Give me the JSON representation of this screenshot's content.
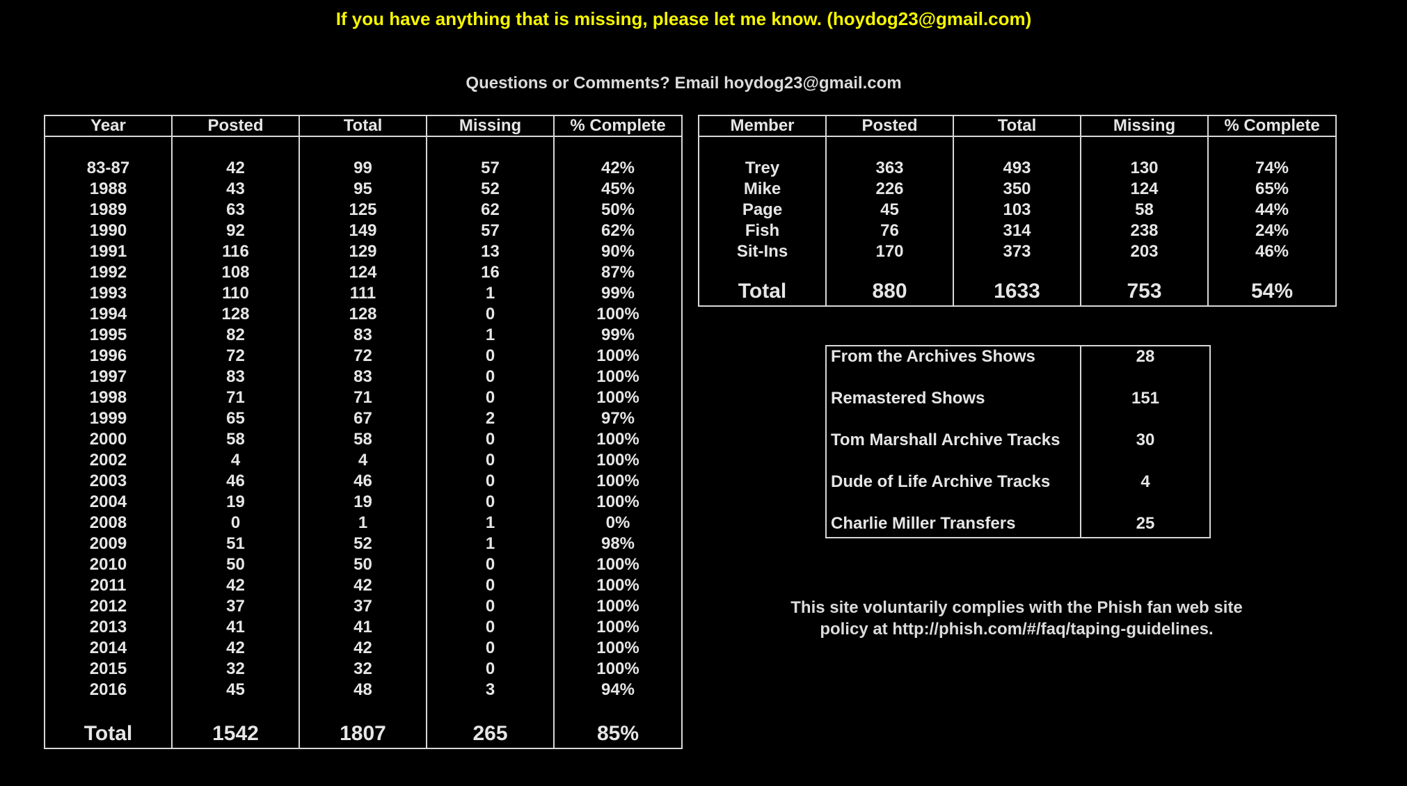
{
  "notice": "If you have anything that is missing, please let me know. (hoydog23@gmail.com)",
  "questions": "Questions or Comments? Email hoydog23@gmail.com",
  "years_table": {
    "headers": [
      "Year",
      "Posted",
      "Total",
      "Missing",
      "% Complete"
    ],
    "rows": [
      [
        "83-87",
        "42",
        "99",
        "57",
        "42%"
      ],
      [
        "1988",
        "43",
        "95",
        "52",
        "45%"
      ],
      [
        "1989",
        "63",
        "125",
        "62",
        "50%"
      ],
      [
        "1990",
        "92",
        "149",
        "57",
        "62%"
      ],
      [
        "1991",
        "116",
        "129",
        "13",
        "90%"
      ],
      [
        "1992",
        "108",
        "124",
        "16",
        "87%"
      ],
      [
        "1993",
        "110",
        "111",
        "1",
        "99%"
      ],
      [
        "1994",
        "128",
        "128",
        "0",
        "100%"
      ],
      [
        "1995",
        "82",
        "83",
        "1",
        "99%"
      ],
      [
        "1996",
        "72",
        "72",
        "0",
        "100%"
      ],
      [
        "1997",
        "83",
        "83",
        "0",
        "100%"
      ],
      [
        "1998",
        "71",
        "71",
        "0",
        "100%"
      ],
      [
        "1999",
        "65",
        "67",
        "2",
        "97%"
      ],
      [
        "2000",
        "58",
        "58",
        "0",
        "100%"
      ],
      [
        "2002",
        "4",
        "4",
        "0",
        "100%"
      ],
      [
        "2003",
        "46",
        "46",
        "0",
        "100%"
      ],
      [
        "2004",
        "19",
        "19",
        "0",
        "100%"
      ],
      [
        "2008",
        "0",
        "1",
        "1",
        "0%"
      ],
      [
        "2009",
        "51",
        "52",
        "1",
        "98%"
      ],
      [
        "2010",
        "50",
        "50",
        "0",
        "100%"
      ],
      [
        "2011",
        "42",
        "42",
        "0",
        "100%"
      ],
      [
        "2012",
        "37",
        "37",
        "0",
        "100%"
      ],
      [
        "2013",
        "41",
        "41",
        "0",
        "100%"
      ],
      [
        "2014",
        "42",
        "42",
        "0",
        "100%"
      ],
      [
        "2015",
        "32",
        "32",
        "0",
        "100%"
      ],
      [
        "2016",
        "45",
        "48",
        "3",
        "94%"
      ]
    ],
    "total": [
      "Total",
      "1542",
      "1807",
      "265",
      "85%"
    ]
  },
  "members_table": {
    "headers": [
      "Member",
      "Posted",
      "Total",
      "Missing",
      "% Complete"
    ],
    "rows": [
      [
        "Trey",
        "363",
        "493",
        "130",
        "74%"
      ],
      [
        "Mike",
        "226",
        "350",
        "124",
        "65%"
      ],
      [
        "Page",
        "45",
        "103",
        "58",
        "44%"
      ],
      [
        "Fish",
        "76",
        "314",
        "238",
        "24%"
      ],
      [
        "Sit-Ins",
        "170",
        "373",
        "203",
        "46%"
      ]
    ],
    "total": [
      "Total",
      "880",
      "1633",
      "753",
      "54%"
    ]
  },
  "archives_table": {
    "rows": [
      [
        "From the Archives Shows",
        "28"
      ],
      [
        "Remastered Shows",
        "151"
      ],
      [
        "Tom Marshall Archive Tracks",
        "30"
      ],
      [
        "Dude of Life Archive Tracks",
        "4"
      ],
      [
        "Charlie Miller Transfers",
        "25"
      ]
    ]
  },
  "policy": {
    "line1": "This site voluntarily complies with the Phish fan web site",
    "line2": "policy at http://phish.com/#/faq/taping-guidelines."
  }
}
